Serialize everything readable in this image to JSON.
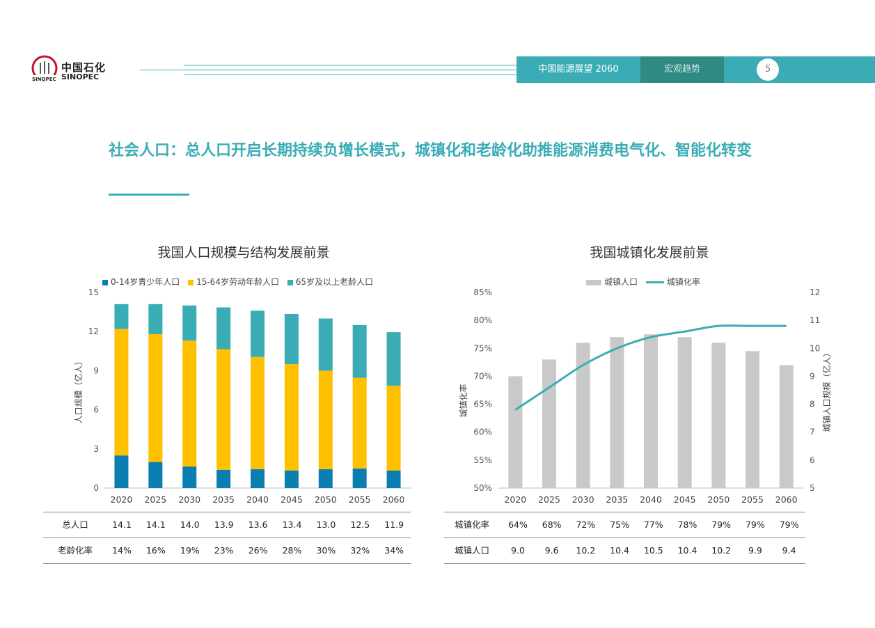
{
  "header": {
    "logo_cn": "中国石化",
    "logo_en": "SINOPEC",
    "report_title": "中国能源展望 2060",
    "section": "宏观趋势",
    "page_number": "5",
    "accent_color": "#3aacb5",
    "section_color": "#2e8a83"
  },
  "headline": "社会人口：总人口开启长期持续负增长模式，城镇化和老龄化助推能源消费电气化、智能化转变",
  "chart_data": [
    {
      "type": "bar",
      "stacked": true,
      "title": "我国人口规模与结构发展前景",
      "ylabel": "人口规模（亿人）",
      "ylim": [
        0,
        15
      ],
      "yticks": [
        0,
        3,
        6,
        9,
        12,
        15
      ],
      "categories": [
        "2020",
        "2025",
        "2030",
        "2035",
        "2040",
        "2045",
        "2050",
        "2055",
        "2060"
      ],
      "series": [
        {
          "name": "0-14岁青少年人口",
          "color": "#0a7eb0",
          "values": [
            2.5,
            2.0,
            1.65,
            1.4,
            1.45,
            1.35,
            1.45,
            1.5,
            1.35
          ]
        },
        {
          "name": "15-64岁劳动年龄人口",
          "color": "#ffc000",
          "values": [
            9.7,
            9.8,
            9.65,
            9.25,
            8.6,
            8.15,
            7.55,
            6.95,
            6.5
          ]
        },
        {
          "name": "65岁及以上老龄人口",
          "color": "#3aacb5",
          "values": [
            1.9,
            2.3,
            2.7,
            3.2,
            3.55,
            3.85,
            4.0,
            4.05,
            4.1
          ]
        }
      ],
      "legend_position": "top",
      "table": {
        "rows": [
          {
            "label": "总人口",
            "values": [
              "14.1",
              "14.1",
              "14.0",
              "13.9",
              "13.6",
              "13.4",
              "13.0",
              "12.5",
              "11.9"
            ]
          },
          {
            "label": "老龄化率",
            "values": [
              "14%",
              "16%",
              "19%",
              "23%",
              "26%",
              "28%",
              "30%",
              "32%",
              "34%"
            ]
          }
        ]
      }
    },
    {
      "type": "bar+line",
      "title": "我国城镇化发展前景",
      "categories": [
        "2020",
        "2025",
        "2030",
        "2035",
        "2040",
        "2045",
        "2050",
        "2055",
        "2060"
      ],
      "ylabel_left": "城镇化率",
      "ylabel_right": "城镇人口规模（亿人）",
      "ylim_left": [
        50,
        85
      ],
      "yticks_left": [
        "50%",
        "55%",
        "60%",
        "65%",
        "70%",
        "75%",
        "80%",
        "85%"
      ],
      "ylim_right": [
        5,
        12
      ],
      "yticks_right": [
        "5",
        "6",
        "7",
        "8",
        "9",
        "10",
        "11",
        "12"
      ],
      "series": [
        {
          "name": "城镇人口",
          "type": "bar",
          "axis": "right",
          "color": "#c9c9c9",
          "values": [
            9.0,
            9.6,
            10.2,
            10.4,
            10.5,
            10.4,
            10.2,
            9.9,
            9.4
          ]
        },
        {
          "name": "城镇化率",
          "type": "line",
          "axis": "left",
          "color": "#3aacb5",
          "values": [
            64,
            68,
            72,
            75,
            77,
            78,
            79,
            79,
            79
          ]
        }
      ],
      "legend_position": "top",
      "table": {
        "rows": [
          {
            "label": "城镇化率",
            "values": [
              "64%",
              "68%",
              "72%",
              "75%",
              "77%",
              "78%",
              "79%",
              "79%",
              "79%"
            ]
          },
          {
            "label": "城镇人口",
            "values": [
              "9.0",
              "9.6",
              "10.2",
              "10.4",
              "10.5",
              "10.4",
              "10.2",
              "9.9",
              "9.4"
            ]
          }
        ]
      }
    }
  ]
}
